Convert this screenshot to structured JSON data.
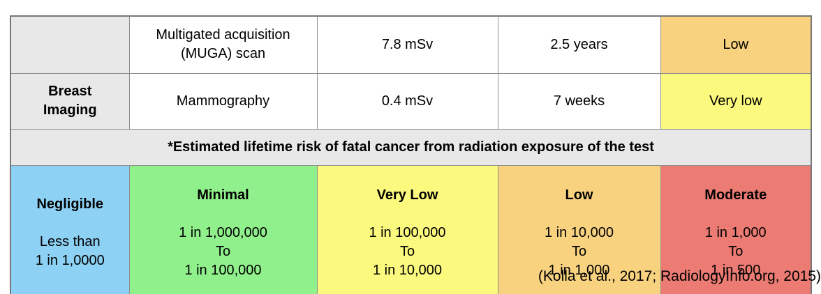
{
  "colors": {
    "header_gray": "#e8e8e8",
    "banner_gray": "#e8e8e8",
    "risk_low_orange": "#f8d27f",
    "risk_very_low_yellow": "#fbf97e",
    "legend_negligible_blue": "#8dd2f4",
    "legend_minimal_green": "#90f18c",
    "legend_very_low_yellow": "#fbf97e",
    "legend_low_orange": "#f8d27f",
    "legend_moderate_red": "#eb7b73"
  },
  "table": {
    "rows": [
      {
        "category": "",
        "test": "Multigated acquisition\n(MUGA) scan",
        "dose": "7.8 mSv",
        "background_equivalent": "2.5 years",
        "risk": "Low"
      },
      {
        "category": "Breast\nImaging",
        "test": "Mammography",
        "dose": "0.4 mSv",
        "background_equivalent": "7 weeks",
        "risk": "Very low"
      }
    ],
    "footnote": "*Estimated lifetime risk of fatal cancer from radiation exposure of the test"
  },
  "legend": [
    {
      "label": "Negligible",
      "range": "Less than\n1 in 1,0000"
    },
    {
      "label": "Minimal",
      "range": "1 in 1,000,000\nTo\n1 in 100,000"
    },
    {
      "label": "Very Low",
      "range": "1 in 100,000\nTo\n1 in 10,000"
    },
    {
      "label": "Low",
      "range": "1 in 10,000\nTo\n1 in 1,000"
    },
    {
      "label": "Moderate",
      "range": "1 in 1,000\nTo\n1 in 500"
    }
  ],
  "citation": "(Kolla et al., 2017; RadiologyInfo.org, 2015)"
}
